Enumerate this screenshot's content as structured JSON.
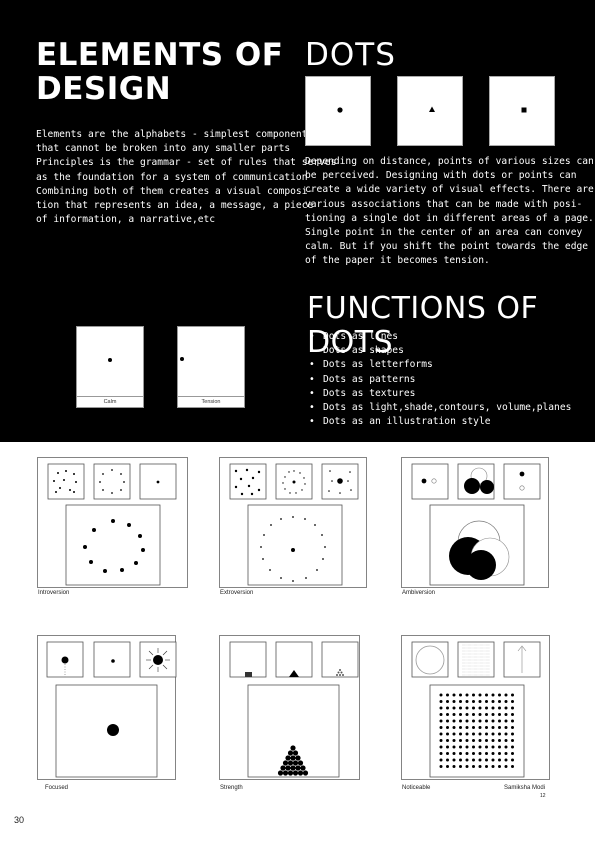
{
  "header": {
    "title_line1": "ELEMENTS OF",
    "title_line2": "DESIGN",
    "dots_title": "DOTS",
    "functions_title": "FUNCTIONS OF DOTS"
  },
  "intro_text": "Elements are the alphabets - simplest component\nthat cannot be broken into any smaller parts\nPrinciples is the grammar - set of rules that serves\nas the foundation for a system of communication\nCombining both of them creates a visual composi-\ntion that represents an idea, a message, a piece\nof information, a narrative,etc",
  "dots_text": "Depending on distance, points of various sizes can\nbe perceived. Designing with dots or points can\ncreate a wide variety of visual effects. There are\nvarious associations that can be made with posi-\ntioning a single dot in different areas of a page.\nSingle point in the center of an area can convey\ncalm. But if you shift the point towards the edge\nof the paper it becomes tension.",
  "examples": [
    {
      "label": "Calm"
    },
    {
      "label": "Tension"
    }
  ],
  "functions": [
    "Dots as lines",
    "Dots as shapes",
    "Dots as letterforms",
    "Dots as patterns",
    "Dots as textures",
    "Dots as light,shade,contours, volume,planes",
    "Dots as an illustration style"
  ],
  "panels": [
    {
      "label": "Introversion"
    },
    {
      "label": "Extroversion"
    },
    {
      "label": "Ambiversion"
    },
    {
      "label": "Focused"
    },
    {
      "label": "Strength"
    },
    {
      "label": "Noticeable"
    }
  ],
  "credit": "Samiksha Modi",
  "credit_num": "12",
  "page_number": "30"
}
